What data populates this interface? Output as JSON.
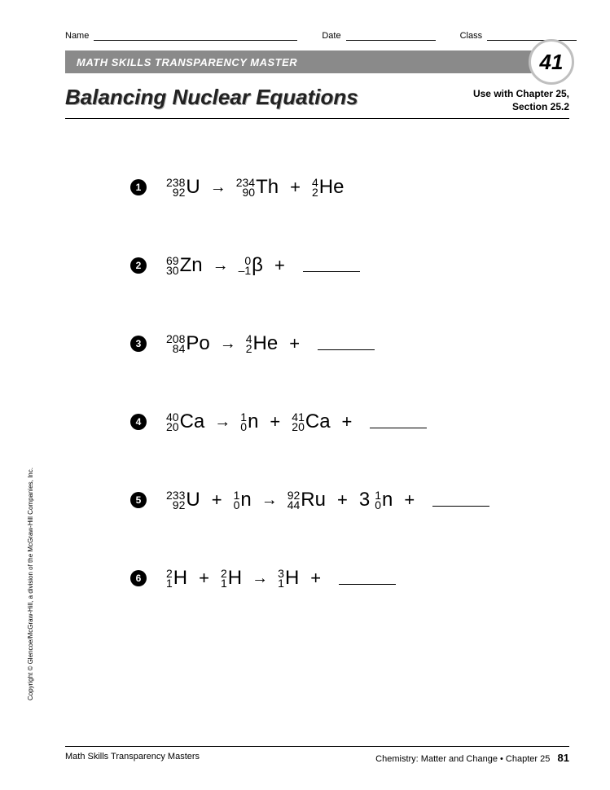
{
  "header": {
    "name_label": "Name",
    "date_label": "Date",
    "class_label": "Class"
  },
  "banner": {
    "text": "MATH SKILLS TRANSPARENCY MASTER",
    "number": "41"
  },
  "title": {
    "main": "Balancing Nuclear Equations",
    "use_with_line1": "Use with Chapter 25,",
    "use_with_line2": "Section 25.2"
  },
  "equations": [
    {
      "num": "1",
      "parts": [
        {
          "t": "nuclide",
          "mass": "238",
          "z": "92",
          "sym": "U"
        },
        {
          "t": "arrow"
        },
        {
          "t": "nuclide",
          "mass": "234",
          "z": "90",
          "sym": "Th"
        },
        {
          "t": "plus"
        },
        {
          "t": "nuclide",
          "mass": "4",
          "z": "2",
          "sym": "He"
        }
      ]
    },
    {
      "num": "2",
      "parts": [
        {
          "t": "nuclide",
          "mass": "69",
          "z": "30",
          "sym": "Zn"
        },
        {
          "t": "arrow"
        },
        {
          "t": "nuclide",
          "mass": "0",
          "z": "–1",
          "sym": "β"
        },
        {
          "t": "plus"
        },
        {
          "t": "blank"
        }
      ]
    },
    {
      "num": "3",
      "parts": [
        {
          "t": "nuclide",
          "mass": "208",
          "z": "84",
          "sym": "Po"
        },
        {
          "t": "arrow"
        },
        {
          "t": "nuclide",
          "mass": "4",
          "z": "2",
          "sym": "He"
        },
        {
          "t": "plus"
        },
        {
          "t": "blank"
        }
      ]
    },
    {
      "num": "4",
      "parts": [
        {
          "t": "nuclide",
          "mass": "40",
          "z": "20",
          "sym": "Ca"
        },
        {
          "t": "arrow"
        },
        {
          "t": "nuclide",
          "mass": "1",
          "z": "0",
          "sym": "n"
        },
        {
          "t": "plus"
        },
        {
          "t": "nuclide",
          "mass": "41",
          "z": "20",
          "sym": "Ca"
        },
        {
          "t": "plus"
        },
        {
          "t": "blank"
        }
      ]
    },
    {
      "num": "5",
      "parts": [
        {
          "t": "nuclide",
          "mass": "233",
          "z": "92",
          "sym": "U"
        },
        {
          "t": "plus"
        },
        {
          "t": "nuclide",
          "mass": "1",
          "z": "0",
          "sym": "n"
        },
        {
          "t": "arrow"
        },
        {
          "t": "nuclide",
          "mass": "92",
          "z": "44",
          "sym": "Ru"
        },
        {
          "t": "plus"
        },
        {
          "t": "coef",
          "val": "3"
        },
        {
          "t": "nuclide",
          "mass": "1",
          "z": "0",
          "sym": "n"
        },
        {
          "t": "plus"
        },
        {
          "t": "blank"
        }
      ]
    },
    {
      "num": "6",
      "parts": [
        {
          "t": "nuclide",
          "mass": "2",
          "z": "1",
          "sym": "H"
        },
        {
          "t": "plus"
        },
        {
          "t": "nuclide",
          "mass": "2",
          "z": "1",
          "sym": "H"
        },
        {
          "t": "arrow"
        },
        {
          "t": "nuclide",
          "mass": "3",
          "z": "1",
          "sym": "H"
        },
        {
          "t": "plus"
        },
        {
          "t": "blank"
        }
      ]
    }
  ],
  "copyright": "Copyright © Glencoe/McGraw-Hill, a division of the McGraw-Hill Companies, Inc.",
  "footer": {
    "left": "Math Skills Transparency Masters",
    "right_text": "Chemistry: Matter and Change • Chapter 25",
    "page": "81"
  },
  "style": {
    "banner_bg": "#8a8a8a",
    "circle_border": "#bfbfbf",
    "field_widths": {
      "name": 250,
      "date": 110,
      "class": 110
    }
  }
}
